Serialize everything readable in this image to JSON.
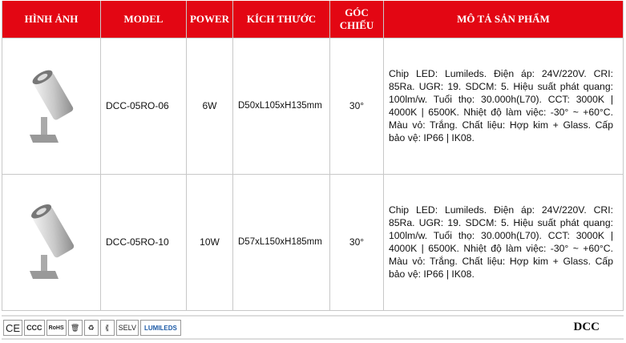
{
  "header": [
    "HÌNH ẢNH",
    "MODEL",
    "POWER",
    "KÍCH THƯỚC",
    "GÓC CHIẾU",
    "MÔ TẢ SẢN PHẨM"
  ],
  "rows": [
    {
      "image": "spotlight-silver",
      "model": "DCC-05RO-06",
      "power": "6W",
      "size": "D50xL105xH135mm",
      "angle": "30°",
      "desc": "Chip LED: Lumileds. Điện áp: 24V/220V. CRI: 85Ra. UGR: 19. SDCM: 5. Hiệu suất phát quang: 100lm/w. Tuổi thọ: 30.000h(L70). CCT: 3000K | 4000K | 6500K. Nhiệt độ làm việc: -30° ~ +60°C. Màu vỏ: Trắng. Chất liệu: Hợp kim + Glass. Cấp bảo vệ: IP66 | IK08."
    },
    {
      "image": "spotlight-silver",
      "model": "DCC-05RO-10",
      "power": "10W",
      "size": "D57xL150xH185mm",
      "angle": "30°",
      "desc": "Chip LED: Lumileds. Điện áp: 24V/220V. CRI: 85Ra. UGR: 19. SDCM: 5. Hiệu suất phát quang: 100lm/w. Tuổi thọ: 30.000h(L70). CCT: 3000K | 4000K | 6500K. Nhiệt độ làm việc: -30° ~ +60°C. Màu vỏ: Trắng. Chất liệu: Hợp kim + Glass. Cấp bảo vệ: IP66 | IK08."
    }
  ],
  "footer": {
    "certs": [
      "CE",
      "CCC",
      "RoHS",
      "WEEE",
      "Recycle",
      "Class III",
      "SELV",
      "LUMILEDS"
    ],
    "logo": "DCC"
  },
  "colors": {
    "header_bg": "#e30613",
    "border": "#c8c8c8"
  }
}
